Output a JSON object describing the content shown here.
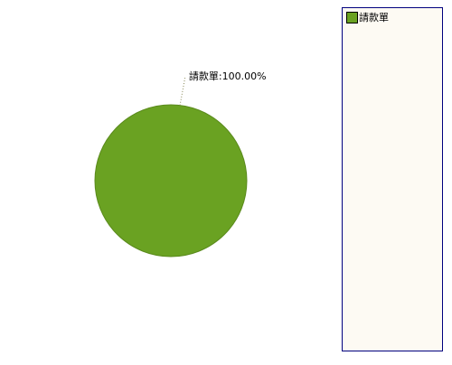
{
  "chart_data": {
    "type": "pie",
    "categories": [
      "請款單"
    ],
    "values": [
      100
    ],
    "value_labels": [
      "請款單:100.00%"
    ],
    "colors": [
      "#6aa222"
    ],
    "legend": "right"
  }
}
